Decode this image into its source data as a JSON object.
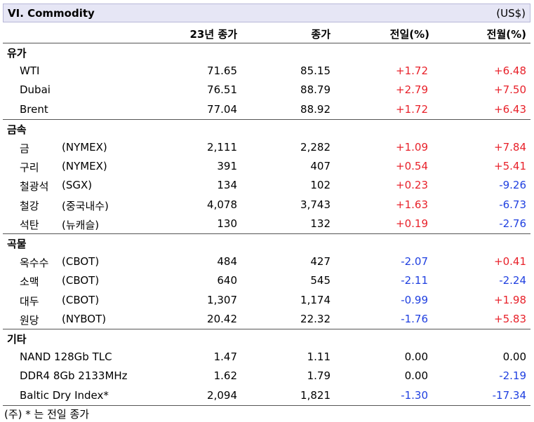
{
  "header": {
    "title": "VI. Commodity",
    "unit": "(US$)"
  },
  "columns": {
    "c1": "23년 종가",
    "c2": "종가",
    "c3": "전일(%)",
    "c4": "전월(%)"
  },
  "sections": [
    {
      "name": "유가",
      "rows": [
        {
          "name": "WTI",
          "sub": "",
          "y23": "71.65",
          "close": "85.15",
          "d": "+1.72",
          "m": "+6.48"
        },
        {
          "name": "Dubai",
          "sub": "",
          "y23": "76.51",
          "close": "88.79",
          "d": "+2.79",
          "m": "+7.50"
        },
        {
          "name": "Brent",
          "sub": "",
          "y23": "77.04",
          "close": "88.92",
          "d": "+1.72",
          "m": "+6.43"
        }
      ]
    },
    {
      "name": "금속",
      "rows": [
        {
          "name": "금",
          "sub": "(NYMEX)",
          "y23": "2,111",
          "close": "2,282",
          "d": "+1.09",
          "m": "+7.84"
        },
        {
          "name": "구리",
          "sub": "(NYMEX)",
          "y23": "391",
          "close": "407",
          "d": "+0.54",
          "m": "+5.41"
        },
        {
          "name": "철광석",
          "sub": "(SGX)",
          "y23": "134",
          "close": "102",
          "d": "+0.23",
          "m": "-9.26"
        },
        {
          "name": "철강",
          "sub": "(중국내수)",
          "y23": "4,078",
          "close": "3,743",
          "d": "+1.63",
          "m": "-6.73"
        },
        {
          "name": "석탄",
          "sub": "(뉴캐슬)",
          "y23": "130",
          "close": "132",
          "d": "+0.19",
          "m": "-2.76"
        }
      ]
    },
    {
      "name": "곡물",
      "rows": [
        {
          "name": "옥수수",
          "sub": "(CBOT)",
          "y23": "484",
          "close": "427",
          "d": "-2.07",
          "m": "+0.41"
        },
        {
          "name": "소맥",
          "sub": "(CBOT)",
          "y23": "640",
          "close": "545",
          "d": "-2.11",
          "m": "-2.24"
        },
        {
          "name": "대두",
          "sub": "(CBOT)",
          "y23": "1,307",
          "close": "1,174",
          "d": "-0.99",
          "m": "+1.98"
        },
        {
          "name": "원당",
          "sub": "(NYBOT)",
          "y23": "20.42",
          "close": "22.32",
          "d": "-1.76",
          "m": "+5.83"
        }
      ]
    },
    {
      "name": "기타",
      "rows": [
        {
          "name": "NAND 128Gb TLC",
          "sub": "",
          "y23": "1.47",
          "close": "1.11",
          "d": "0.00",
          "m": "0.00"
        },
        {
          "name": "DDR4 8Gb 2133MHz",
          "sub": "",
          "y23": "1.62",
          "close": "1.79",
          "d": "0.00",
          "m": "-2.19"
        },
        {
          "name": "Baltic Dry Index*",
          "sub": "",
          "y23": "2,094",
          "close": "1,821",
          "d": "-1.30",
          "m": "-17.34"
        }
      ]
    }
  ],
  "footnote": "(주) * 는 전일 종가"
}
